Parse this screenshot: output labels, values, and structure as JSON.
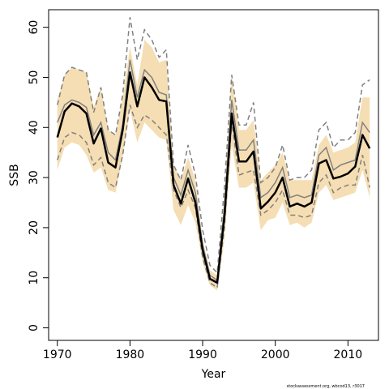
{
  "chart_data": {
    "type": "line",
    "title": "",
    "xlabel": "Year",
    "ylabel": "SSB",
    "xlim": [
      1968.8,
      2014.2
    ],
    "ylim": [
      -2.5,
      63.5
    ],
    "x_ticks": [
      1970,
      1980,
      1990,
      2000,
      2010
    ],
    "y_ticks": [
      0,
      10,
      20,
      30,
      40,
      50,
      60
    ],
    "grid": false,
    "legend": "none",
    "footnote": "stockassessment.org, wbcod13, r3017",
    "colors": {
      "band": "#f5deb3",
      "main": "#000000",
      "secondary_solid": "#808080",
      "secondary_dashed": "#808080"
    },
    "x": [
      1970,
      1971,
      1972,
      1973,
      1974,
      1975,
      1976,
      1977,
      1978,
      1979,
      1980,
      1981,
      1982,
      1983,
      1984,
      1985,
      1986,
      1987,
      1988,
      1989,
      1990,
      1991,
      1992,
      1993,
      1994,
      1995,
      1996,
      1997,
      1998,
      1999,
      2000,
      2001,
      2002,
      2003,
      2004,
      2005,
      2006,
      2007,
      2008,
      2009,
      2010,
      2011,
      2012,
      2013
    ],
    "series": [
      {
        "role": "ci_band",
        "upper": [
          45.5,
          50.5,
          52.0,
          51.5,
          51.0,
          44.0,
          48.0,
          39.5,
          38.5,
          46.0,
          56.0,
          48.5,
          57.5,
          56.0,
          53.0,
          53.5,
          32.5,
          29.5,
          34.0,
          29.5,
          17.5,
          11.5,
          10.5,
          26.0,
          50.5,
          39.5,
          39.5,
          41.5,
          29.5,
          31.0,
          32.5,
          35.0,
          29.5,
          29.5,
          29.5,
          29.5,
          36.5,
          38.5,
          35.0,
          35.5,
          36.0,
          37.0,
          46.0,
          46.0
        ],
        "lower": [
          31.5,
          36.0,
          37.0,
          36.5,
          34.5,
          31.0,
          32.0,
          27.5,
          27.0,
          34.0,
          43.5,
          37.0,
          41.0,
          39.5,
          38.0,
          37.5,
          23.5,
          20.5,
          24.5,
          21.0,
          13.0,
          8.5,
          7.5,
          17.5,
          36.5,
          28.0,
          28.0,
          29.0,
          19.5,
          21.5,
          22.0,
          25.0,
          20.5,
          21.0,
          20.0,
          21.0,
          27.0,
          28.5,
          25.5,
          26.0,
          26.5,
          27.0,
          31.5,
          26.0
        ]
      },
      {
        "role": "estimate",
        "values": [
          38.0,
          43.2,
          44.8,
          44.2,
          42.8,
          36.8,
          39.8,
          33.0,
          32.0,
          39.5,
          51.0,
          44.2,
          50.0,
          48.0,
          45.5,
          45.2,
          28.5,
          24.8,
          29.8,
          25.0,
          15.5,
          9.8,
          9.0,
          22.2,
          42.8,
          33.2,
          33.2,
          35.2,
          23.8,
          25.2,
          27.0,
          30.0,
          24.2,
          24.8,
          24.2,
          25.0,
          32.8,
          33.5,
          29.8,
          30.2,
          30.8,
          32.2,
          38.5,
          35.8
        ]
      },
      {
        "role": "alt_estimate",
        "values": [
          41.0,
          44.5,
          45.5,
          45.0,
          44.0,
          38.5,
          41.0,
          35.0,
          33.5,
          40.5,
          53.5,
          46.0,
          51.5,
          50.0,
          47.0,
          46.5,
          30.0,
          26.5,
          31.5,
          27.0,
          16.5,
          10.5,
          9.5,
          24.0,
          45.5,
          35.5,
          35.5,
          37.5,
          26.0,
          27.0,
          29.0,
          32.0,
          26.0,
          26.5,
          26.0,
          26.5,
          34.5,
          36.0,
          31.5,
          32.5,
          33.0,
          33.5,
          41.0,
          39.0
        ]
      },
      {
        "role": "alt_upper",
        "values": [
          44.5,
          50.5,
          52.0,
          51.5,
          51.0,
          43.0,
          48.0,
          39.5,
          38.5,
          46.5,
          62.0,
          53.5,
          59.5,
          57.5,
          54.0,
          55.5,
          32.5,
          29.5,
          36.5,
          30.5,
          19.5,
          12.5,
          11.0,
          28.0,
          50.5,
          40.5,
          40.5,
          45.0,
          29.0,
          30.0,
          32.0,
          36.5,
          29.5,
          30.0,
          30.0,
          31.5,
          39.5,
          41.0,
          36.0,
          37.5,
          37.5,
          39.0,
          48.5,
          49.5
        ]
      },
      {
        "role": "alt_lower",
        "values": [
          33.5,
          38.0,
          39.0,
          38.5,
          37.0,
          32.5,
          34.0,
          29.0,
          28.0,
          34.5,
          44.5,
          40.0,
          42.5,
          41.5,
          40.0,
          38.5,
          27.5,
          24.0,
          27.5,
          24.0,
          14.0,
          9.0,
          8.0,
          20.0,
          41.0,
          30.5,
          31.0,
          31.5,
          22.5,
          23.5,
          25.0,
          27.5,
          22.5,
          22.5,
          22.0,
          22.5,
          29.0,
          30.5,
          27.0,
          28.0,
          28.5,
          28.5,
          34.5,
          28.0
        ]
      }
    ]
  }
}
